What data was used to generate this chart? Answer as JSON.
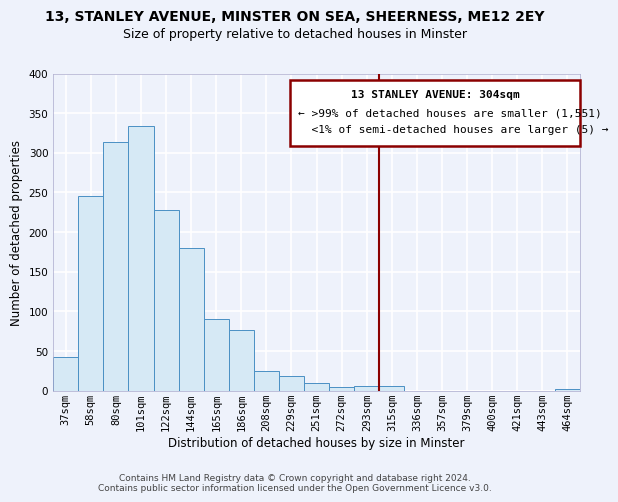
{
  "title": "13, STANLEY AVENUE, MINSTER ON SEA, SHEERNESS, ME12 2EY",
  "subtitle": "Size of property relative to detached houses in Minster",
  "xlabel": "Distribution of detached houses by size in Minster",
  "ylabel": "Number of detached properties",
  "bar_labels": [
    "37sqm",
    "58sqm",
    "80sqm",
    "101sqm",
    "122sqm",
    "144sqm",
    "165sqm",
    "186sqm",
    "208sqm",
    "229sqm",
    "251sqm",
    "272sqm",
    "293sqm",
    "315sqm",
    "336sqm",
    "357sqm",
    "379sqm",
    "400sqm",
    "421sqm",
    "443sqm",
    "464sqm"
  ],
  "bar_values": [
    42,
    246,
    313,
    334,
    228,
    180,
    91,
    76,
    25,
    18,
    10,
    4,
    6,
    6,
    0,
    0,
    0,
    0,
    0,
    0,
    2
  ],
  "bar_color": "#d6e9f5",
  "bar_edge_color": "#4a90c4",
  "ylim": [
    0,
    400
  ],
  "yticks": [
    0,
    50,
    100,
    150,
    200,
    250,
    300,
    350,
    400
  ],
  "vline_index": 13,
  "vline_color": "#8b0000",
  "annotation_title": "13 STANLEY AVENUE: 304sqm",
  "annotation_line1": "← >99% of detached houses are smaller (1,551)",
  "annotation_line2": "  <1% of semi-detached houses are larger (5) →",
  "footer_line1": "Contains HM Land Registry data © Crown copyright and database right 2024.",
  "footer_line2": "Contains public sector information licensed under the Open Government Licence v3.0.",
  "background_color": "#eef2fb",
  "grid_color": "#ffffff",
  "title_fontsize": 10,
  "subtitle_fontsize": 9,
  "axis_label_fontsize": 8.5,
  "tick_fontsize": 7.5,
  "annotation_fontsize": 8,
  "footer_fontsize": 6.5
}
